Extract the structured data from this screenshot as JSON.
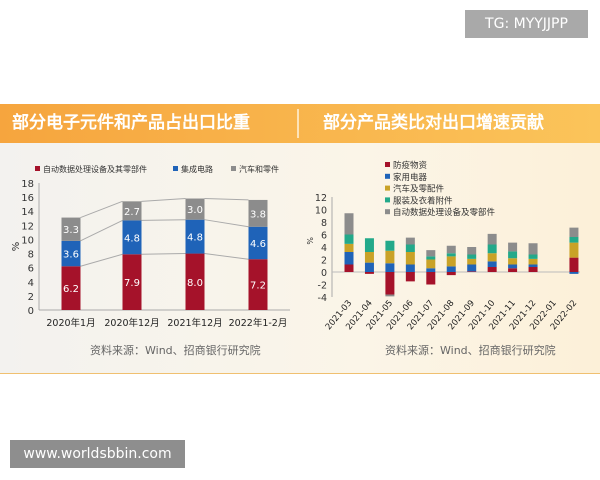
{
  "overlay": {
    "tg_label": "TG: MYYJJPP",
    "watermark": "www.worldsbbin.com"
  },
  "banner": {
    "left_title": "部分电子元件和产品占出口比重",
    "right_title": "部分产品类比对出口增速贡献"
  },
  "colors": {
    "red": "#a5122a",
    "blue": "#1f63b8",
    "gray": "#8c8c8c",
    "gold": "#c9a227",
    "green": "#23a98a",
    "banner": "#f6a53e"
  },
  "chart_data": [
    {
      "type": "bar",
      "stacked": true,
      "categories": [
        "2020年1月",
        "2020年12月",
        "2021年12月",
        "2022年1-2月"
      ],
      "series": [
        {
          "name": "自动数据处理设备及其零部件",
          "color": "#a5122a",
          "values": [
            6.2,
            7.9,
            8.0,
            7.2
          ]
        },
        {
          "name": "集成电路",
          "color": "#1f63b8",
          "values": [
            3.6,
            4.8,
            4.8,
            4.6
          ]
        },
        {
          "name": "汽车和零件",
          "color": "#8c8c8c",
          "values": [
            3.3,
            2.7,
            3.0,
            3.8
          ]
        }
      ],
      "ylabel": "%",
      "ylim": [
        0,
        18
      ],
      "yticks": [
        0,
        2,
        4,
        6,
        8,
        10,
        12,
        14,
        16,
        18
      ],
      "data_labels": true,
      "legend": "top",
      "source": "资料来源：Wind、招商银行研究院"
    },
    {
      "type": "bar",
      "stacked": true,
      "categories": [
        "2021-03",
        "2021-04",
        "2021-05",
        "2021-06",
        "2021-07",
        "2021-08",
        "2021-09",
        "2021-10",
        "2021-11",
        "2021-12",
        "2022-01",
        "2022-02"
      ],
      "series": [
        {
          "name": "防疫物资",
          "color": "#a5122a",
          "values": [
            1.2,
            -0.3,
            -3.6,
            -1.5,
            -2.0,
            -0.5,
            0.1,
            0.8,
            0.6,
            0.8,
            0,
            2.3
          ]
        },
        {
          "name": "家用电器",
          "color": "#1f63b8",
          "values": [
            2.0,
            1.5,
            1.4,
            1.2,
            0.6,
            0.9,
            1.1,
            0.9,
            0.6,
            0.4,
            0,
            -0.3
          ]
        },
        {
          "name": "汽车及零配件",
          "color": "#c9a227",
          "values": [
            1.3,
            1.7,
            2.0,
            2.0,
            1.4,
            1.6,
            0.9,
            1.3,
            1.0,
            0.9,
            0,
            2.4
          ]
        },
        {
          "name": "服装及衣着附件",
          "color": "#23a98a",
          "values": [
            1.5,
            2.2,
            1.6,
            1.2,
            0.5,
            0.5,
            0.7,
            1.4,
            1.1,
            0.7,
            0,
            0.9
          ]
        },
        {
          "name": "自动数据处理设备及零部件",
          "color": "#8c8c8c",
          "values": [
            3.4,
            0,
            -0.3,
            1.1,
            1.0,
            1.2,
            1.2,
            1.7,
            1.4,
            1.8,
            0,
            1.5
          ]
        }
      ],
      "ylabel": "%",
      "ylim": [
        -4,
        12
      ],
      "yticks": [
        -4,
        -2,
        0,
        2,
        4,
        6,
        8,
        10,
        12
      ],
      "legend": "top",
      "source": "资料来源：Wind、招商银行研究院"
    }
  ]
}
